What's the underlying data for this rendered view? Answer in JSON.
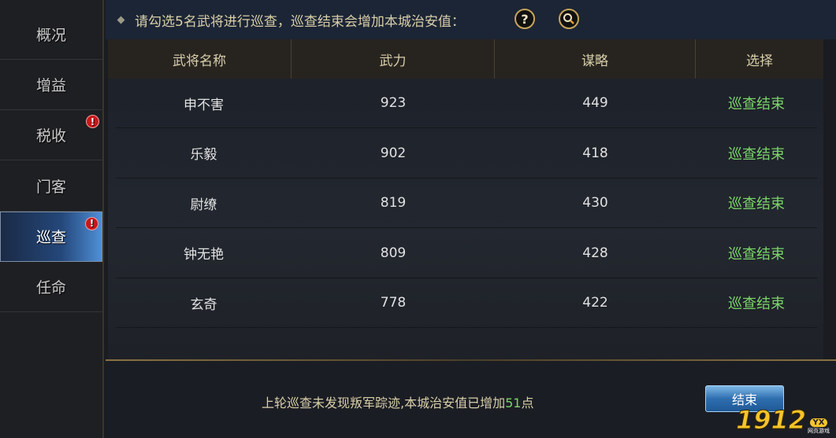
{
  "sidebar": {
    "items": [
      {
        "label": "概况",
        "badge": false
      },
      {
        "label": "增益",
        "badge": false
      },
      {
        "label": "税收",
        "badge": true
      },
      {
        "label": "门客",
        "badge": false
      },
      {
        "label": "巡查",
        "badge": true,
        "active": true
      },
      {
        "label": "任命",
        "badge": false
      }
    ],
    "badge_symbol": "!"
  },
  "topbar": {
    "instruction": "请勾选5名武将进行巡查，巡查结束会增加本城治安值：",
    "help_icon": "?",
    "search_icon": "magnifier"
  },
  "table": {
    "headers": [
      "武将名称",
      "武力",
      "谋略",
      "选择"
    ],
    "rows": [
      {
        "name": "申不害",
        "force": "923",
        "strategy": "449",
        "status": "巡查结束"
      },
      {
        "name": "乐毅",
        "force": "902",
        "strategy": "418",
        "status": "巡查结束"
      },
      {
        "name": "尉缭",
        "force": "819",
        "strategy": "430",
        "status": "巡查结束"
      },
      {
        "name": "钟无艳",
        "force": "809",
        "strategy": "428",
        "status": "巡查结束"
      },
      {
        "name": "玄奇",
        "force": "778",
        "strategy": "422",
        "status": "巡查结束"
      }
    ]
  },
  "footer": {
    "message_prefix": "上轮巡查未发现叛军踪迹,本城治安值已增加",
    "message_value": "51",
    "message_suffix": "点",
    "end_button": "结束"
  },
  "logo": {
    "digits": "1912",
    "badge": "YX",
    "sub": "网页游戏"
  },
  "colors": {
    "accent_green": "#7bd46a",
    "gold_text": "#d8cfa8",
    "badge_red": "#c8171b"
  }
}
